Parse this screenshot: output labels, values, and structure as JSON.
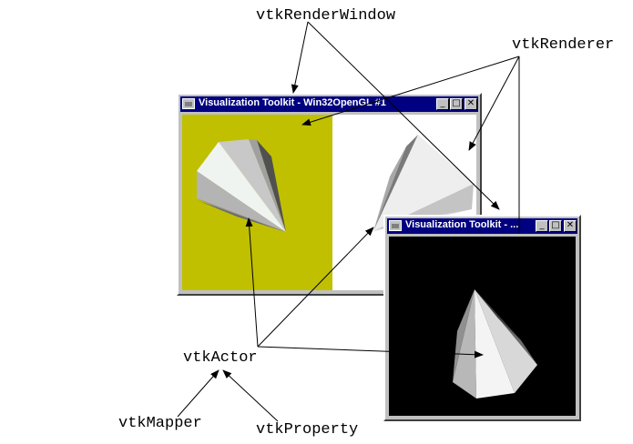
{
  "labels": {
    "render_window": "vtkRenderWindow",
    "renderer": "vtkRenderer",
    "actor": "vtkActor",
    "mapper": "vtkMapper",
    "property": "vtkProperty"
  },
  "window1": {
    "title": "Visualization Toolkit - Win32OpenGL #1",
    "left_viewport_color": "#c0c000",
    "right_viewport_color": "#ffffff"
  },
  "window2": {
    "title": "Visualization Toolkit - ...",
    "viewport_color": "#000000"
  },
  "title_buttons": {
    "minimize": "_",
    "maximize": "□",
    "close": "✕"
  },
  "colors": {
    "title_bar": "#000080",
    "frame": "#c0c0c0",
    "arrow": "#000000"
  }
}
